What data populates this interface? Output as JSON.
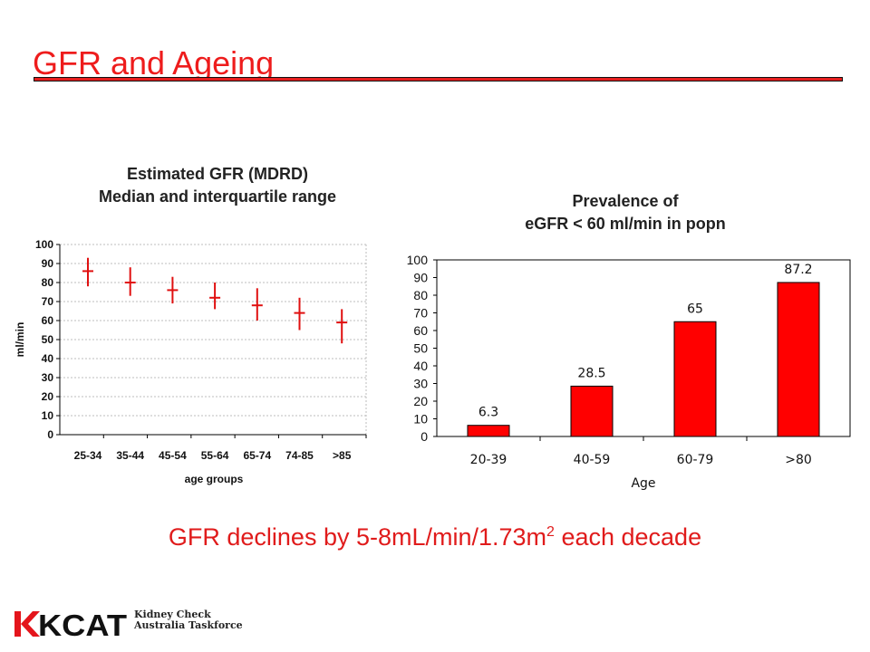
{
  "slide": {
    "title": "GFR and Ageing",
    "caption_main": "GFR declines by 5-8mL/min/1.73m",
    "caption_sup": "2",
    "caption_tail": " each decade",
    "logo": {
      "mark": "KCAT",
      "line1": "Kidney Check",
      "line2": "Australia Taskforce"
    },
    "accent_color": "#e41e1e"
  },
  "chart_data": [
    {
      "type": "scatter",
      "title_line1": "Estimated GFR (MDRD)",
      "title_line2": "Median and interquartile range",
      "xlabel": "age groups",
      "ylabel": "ml/min",
      "ylim": [
        0,
        100
      ],
      "yticks": [
        0,
        10,
        20,
        30,
        40,
        50,
        60,
        70,
        80,
        90,
        100
      ],
      "grid": true,
      "categories": [
        "25-34",
        "35-44",
        "45-54",
        "55-64",
        "65-74",
        "74-85",
        ">85"
      ],
      "series": [
        {
          "median": [
            86,
            80,
            76,
            72,
            68,
            64,
            59
          ],
          "q1": [
            78,
            73,
            69,
            66,
            60,
            55,
            48
          ],
          "q3": [
            93,
            88,
            83,
            80,
            77,
            72,
            66
          ]
        }
      ]
    },
    {
      "type": "bar",
      "title_line1": "Prevalence of",
      "title_line2": "eGFR < 60 ml/min in popn",
      "xlabel": "Age",
      "ylabel": "",
      "ylim": [
        0,
        100
      ],
      "yticks": [
        0,
        10,
        20,
        30,
        40,
        50,
        60,
        70,
        80,
        90,
        100
      ],
      "grid": false,
      "categories": [
        "20-39",
        "40-59",
        "60-79",
        ">80"
      ],
      "values": [
        6.3,
        28.5,
        65,
        87.2
      ],
      "value_labels": [
        "6.3",
        "28.5",
        "65",
        "87.2"
      ],
      "bar_color": "#ff0000"
    }
  ]
}
